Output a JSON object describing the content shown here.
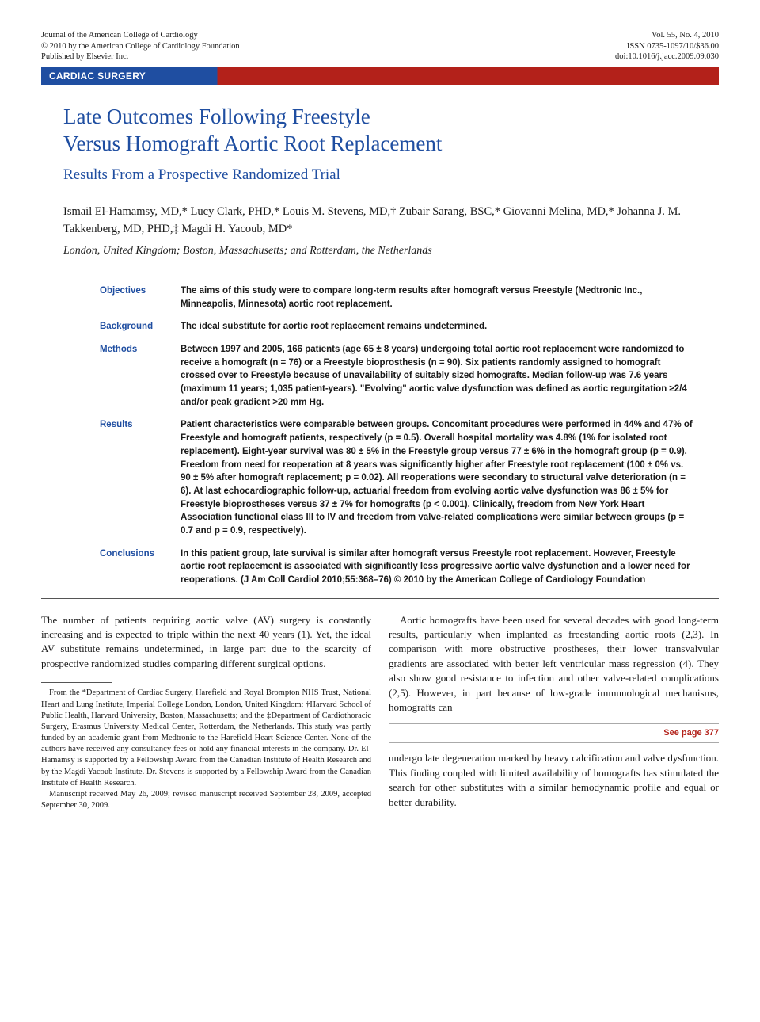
{
  "colors": {
    "brand_blue": "#1f4ea1",
    "accent_red": "#b3211a",
    "text": "#1a1a1a",
    "background": "#ffffff"
  },
  "header": {
    "left_line1": "Journal of the American College of Cardiology",
    "left_line2": "© 2010 by the American College of Cardiology Foundation",
    "left_line3": "Published by Elsevier Inc.",
    "right_line1": "Vol. 55, No. 4, 2010",
    "right_line2": "ISSN 0735-1097/10/$36.00",
    "right_line3": "doi:10.1016/j.jacc.2009.09.030"
  },
  "category": "CARDIAC SURGERY",
  "title_line1": "Late Outcomes Following Freestyle",
  "title_line2": "Versus Homograft Aortic Root Replacement",
  "subtitle": "Results From a Prospective Randomized Trial",
  "authors": "Ismail El-Hamamsy, MD,* Lucy Clark, PHD,* Louis M. Stevens, MD,† Zubair Sarang, BSC,* Giovanni Melina, MD,* Johanna J. M. Takkenberg, MD, PHD,‡ Magdi H. Yacoub, MD*",
  "affiliations": "London, United Kingdom; Boston, Massachusetts; and Rotterdam, the Netherlands",
  "abstract": {
    "objectives": {
      "label": "Objectives",
      "text": "The aims of this study were to compare long-term results after homograft versus Freestyle (Medtronic Inc., Minneapolis, Minnesota) aortic root replacement."
    },
    "background": {
      "label": "Background",
      "text": "The ideal substitute for aortic root replacement remains undetermined."
    },
    "methods": {
      "label": "Methods",
      "text": "Between 1997 and 2005, 166 patients (age 65 ± 8 years) undergoing total aortic root replacement were randomized to receive a homograft (n = 76) or a Freestyle bioprosthesis (n = 90). Six patients randomly assigned to homograft crossed over to Freestyle because of unavailability of suitably sized homografts. Median follow-up was 7.6 years (maximum 11 years; 1,035 patient-years). \"Evolving\" aortic valve dysfunction was defined as aortic regurgitation ≥2/4 and/or peak gradient >20 mm Hg."
    },
    "results": {
      "label": "Results",
      "text": "Patient characteristics were comparable between groups. Concomitant procedures were performed in 44% and 47% of Freestyle and homograft patients, respectively (p = 0.5). Overall hospital mortality was 4.8% (1% for isolated root replacement). Eight-year survival was 80 ± 5% in the Freestyle group versus 77 ± 6% in the homograft group (p = 0.9). Freedom from need for reoperation at 8 years was significantly higher after Freestyle root replacement (100 ± 0% vs. 90 ± 5% after homograft replacement; p = 0.02). All reoperations were secondary to structural valve deterioration (n = 6). At last echocardiographic follow-up, actuarial freedom from evolving aortic valve dysfunction was 86 ± 5% for Freestyle bioprostheses versus 37 ± 7% for homografts (p < 0.001). Clinically, freedom from New York Heart Association functional class III to IV and freedom from valve-related complications were similar between groups (p = 0.7 and p = 0.9, respectively)."
    },
    "conclusions": {
      "label": "Conclusions",
      "text": "In this patient group, late survival is similar after homograft versus Freestyle root replacement. However, Freestyle aortic root replacement is associated with significantly less progressive aortic valve dysfunction and a lower need for reoperations.   (J Am Coll Cardiol 2010;55:368–76) © 2010 by the American College of Cardiology Foundation"
    }
  },
  "body": {
    "col1_p1": "The number of patients requiring aortic valve (AV) surgery is constantly increasing and is expected to triple within the next 40 years (1). Yet, the ideal AV substitute remains undetermined, in large part due to the scarcity of prospective randomized studies comparing different surgical options.",
    "col2_p1": "Aortic homografts have been used for several decades with good long-term results, particularly when implanted as freestanding aortic roots (2,3). In comparison with more obstructive prostheses, their lower transvalvular gradients are associated with better left ventricular mass regression (4). They also show good resistance to infection and other valve-related complications (2,5). However, in part because of low-grade immunological mechanisms, homografts can",
    "col2_seepage": "See page 377",
    "col2_p2": "undergo late degeneration marked by heavy calcification and valve dysfunction. This finding coupled with limited availability of homografts has stimulated the search for other substitutes with a similar hemodynamic profile and equal or better durability."
  },
  "footnotes": {
    "p1": "From the *Department of Cardiac Surgery, Harefield and Royal Brompton NHS Trust, National Heart and Lung Institute, Imperial College London, London, United Kingdom; †Harvard School of Public Health, Harvard University, Boston, Massachusetts; and the ‡Department of Cardiothoracic Surgery, Erasmus University Medical Center, Rotterdam, the Netherlands. This study was partly funded by an academic grant from Medtronic to the Harefield Heart Science Center. None of the authors have received any consultancy fees or hold any financial interests in the company. Dr. El-Hamamsy is supported by a Fellowship Award from the Canadian Institute of Health Research and by the Magdi Yacoub Institute. Dr. Stevens is supported by a Fellowship Award from the Canadian Institute of Health Research.",
    "p2": "Manuscript received May 26, 2009; revised manuscript received September 28, 2009, accepted September 30, 2009."
  }
}
